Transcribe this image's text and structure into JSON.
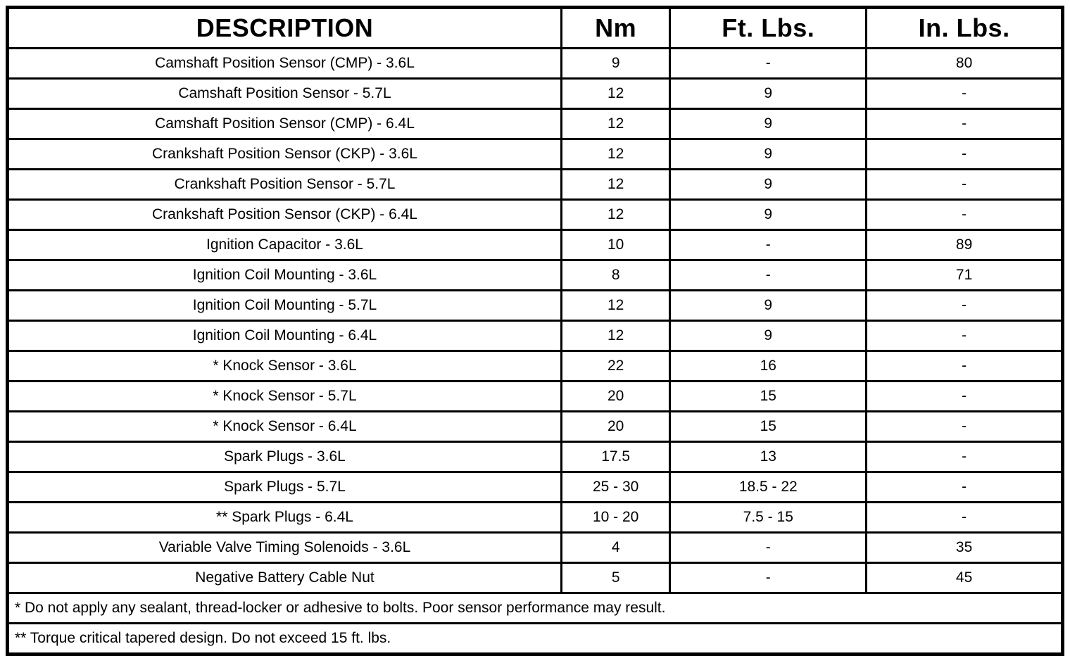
{
  "table": {
    "headers": {
      "description": "DESCRIPTION",
      "nm": "Nm",
      "ft_lbs": "Ft. Lbs.",
      "in_lbs": "In. Lbs."
    },
    "rows": [
      {
        "description": "Camshaft Position Sensor (CMP) - 3.6L",
        "nm": "9",
        "ft_lbs": "-",
        "in_lbs": "80"
      },
      {
        "description": "Camshaft Position Sensor - 5.7L",
        "nm": "12",
        "ft_lbs": "9",
        "in_lbs": "-"
      },
      {
        "description": "Camshaft Position Sensor (CMP) - 6.4L",
        "nm": "12",
        "ft_lbs": "9",
        "in_lbs": "-"
      },
      {
        "description": "Crankshaft Position Sensor (CKP) - 3.6L",
        "nm": "12",
        "ft_lbs": "9",
        "in_lbs": "-"
      },
      {
        "description": "Crankshaft Position Sensor - 5.7L",
        "nm": "12",
        "ft_lbs": "9",
        "in_lbs": "-"
      },
      {
        "description": "Crankshaft Position Sensor (CKP) - 6.4L",
        "nm": "12",
        "ft_lbs": "9",
        "in_lbs": "-"
      },
      {
        "description": "Ignition Capacitor - 3.6L",
        "nm": "10",
        "ft_lbs": "-",
        "in_lbs": "89"
      },
      {
        "description": "Ignition Coil Mounting - 3.6L",
        "nm": "8",
        "ft_lbs": "-",
        "in_lbs": "71"
      },
      {
        "description": "Ignition Coil Mounting - 5.7L",
        "nm": "12",
        "ft_lbs": "9",
        "in_lbs": "-"
      },
      {
        "description": "Ignition Coil Mounting - 6.4L",
        "nm": "12",
        "ft_lbs": "9",
        "in_lbs": "-"
      },
      {
        "description": "* Knock Sensor - 3.6L",
        "nm": "22",
        "ft_lbs": "16",
        "in_lbs": "-"
      },
      {
        "description": "* Knock Sensor - 5.7L",
        "nm": "20",
        "ft_lbs": "15",
        "in_lbs": "-"
      },
      {
        "description": "* Knock Sensor - 6.4L",
        "nm": "20",
        "ft_lbs": "15",
        "in_lbs": "-"
      },
      {
        "description": "Spark Plugs - 3.6L",
        "nm": "17.5",
        "ft_lbs": "13",
        "in_lbs": "-"
      },
      {
        "description": "Spark Plugs - 5.7L",
        "nm": "25 - 30",
        "ft_lbs": "18.5 - 22",
        "in_lbs": "-"
      },
      {
        "description": "** Spark Plugs - 6.4L",
        "nm": "10 - 20",
        "ft_lbs": "7.5 - 15",
        "in_lbs": "-"
      },
      {
        "description": "Variable Valve Timing Solenoids - 3.6L",
        "nm": "4",
        "ft_lbs": "-",
        "in_lbs": "35"
      },
      {
        "description": "Negative Battery Cable Nut",
        "nm": "5",
        "ft_lbs": "-",
        "in_lbs": "45"
      }
    ],
    "footnotes": [
      "* Do not apply any sealant, thread-locker or adhesive to bolts. Poor sensor performance may result.",
      "** Torque critical tapered design. Do not exceed 15 ft. lbs."
    ]
  },
  "colors": {
    "border": "#000000",
    "background": "#ffffff",
    "text": "#000000"
  }
}
